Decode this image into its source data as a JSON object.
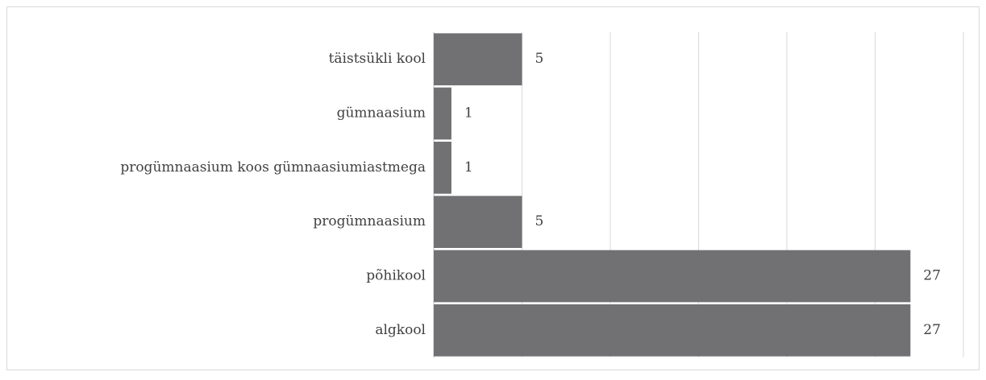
{
  "chart_data": {
    "type": "barh",
    "categories": [
      "täistsükli kool",
      "gümnaasium",
      "progümnaasium koos gümnaasiumiastmega",
      "progümnaasium",
      "põhikool",
      "algkool"
    ],
    "values": [
      5,
      1,
      1,
      5,
      27,
      27
    ],
    "color": "#717073",
    "xlim": [
      0,
      30
    ],
    "xticks": [
      0,
      5,
      10,
      15,
      20,
      25,
      30
    ],
    "grid": true
  }
}
